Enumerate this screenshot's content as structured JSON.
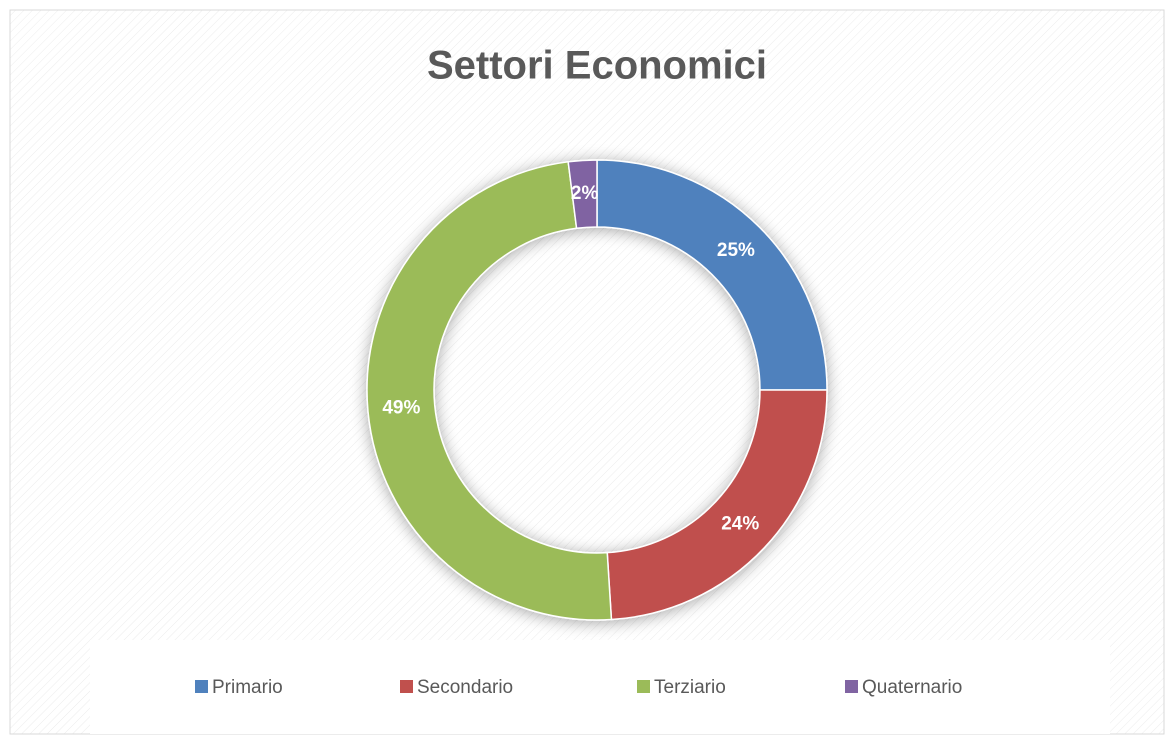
{
  "chart_data": {
    "type": "pie",
    "donut": true,
    "title": "Settori Economici",
    "categories": [
      "Primario",
      "Secondario",
      "Terziario",
      "Quaternario"
    ],
    "values": [
      25,
      24,
      49,
      2
    ],
    "value_labels": [
      "25%",
      "24%",
      "49%",
      "2%"
    ],
    "colors": [
      "#4f81bd",
      "#c0504d",
      "#9bbb59",
      "#8064a2"
    ],
    "legend": "bottom"
  }
}
